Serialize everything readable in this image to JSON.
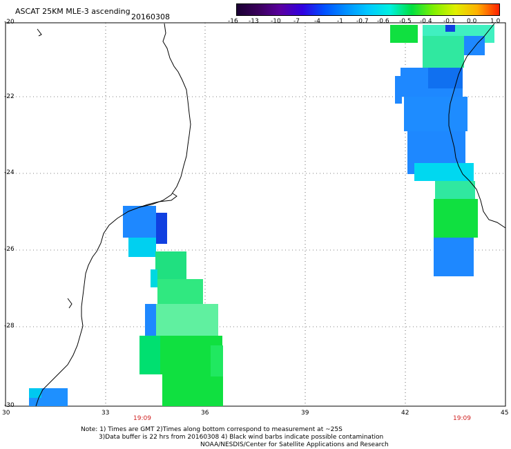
{
  "header": {
    "title": "ASCAT 25KM MLE-3 ascending",
    "date": "20160308"
  },
  "colorbar": {
    "labels": [
      "-16",
      "-13",
      "-10",
      "-7",
      "-4",
      "-1",
      "-0.7",
      "-0.6",
      "-0.5",
      "-0.4",
      "-0.1",
      "0.0",
      "1.0"
    ],
    "colors": [
      "#1a0033",
      "#3a005c",
      "#5a00a0",
      "#3000e0",
      "#0050ff",
      "#0090ff",
      "#00c8ff",
      "#00f0e0",
      "#00e040",
      "#80f000",
      "#e0f000",
      "#ffb000",
      "#ff2000"
    ]
  },
  "axes": {
    "y_labels": [
      "-20",
      "-22",
      "-24",
      "-26",
      "-28",
      "-30"
    ],
    "x_labels": [
      "30",
      "33",
      "36",
      "39",
      "42",
      "45"
    ],
    "time_labels": [
      "19:09",
      "19:09"
    ]
  },
  "notes": {
    "line1": "Note: 1) Times are GMT 2)Times along bottom correspond to measurement at ~25S",
    "line2": "3)Data buffer is 22 hrs from 20160308 4) Black wind barbs indicate possible contamination",
    "line3": "NOAA/NESDIS/Center for Satellite Applications and Research"
  },
  "colors": {
    "blue": "#1e88ff",
    "deep_blue": "#1040e8",
    "cyan": "#00d8f0",
    "green": "#10e040",
    "light_green": "#40f070"
  }
}
